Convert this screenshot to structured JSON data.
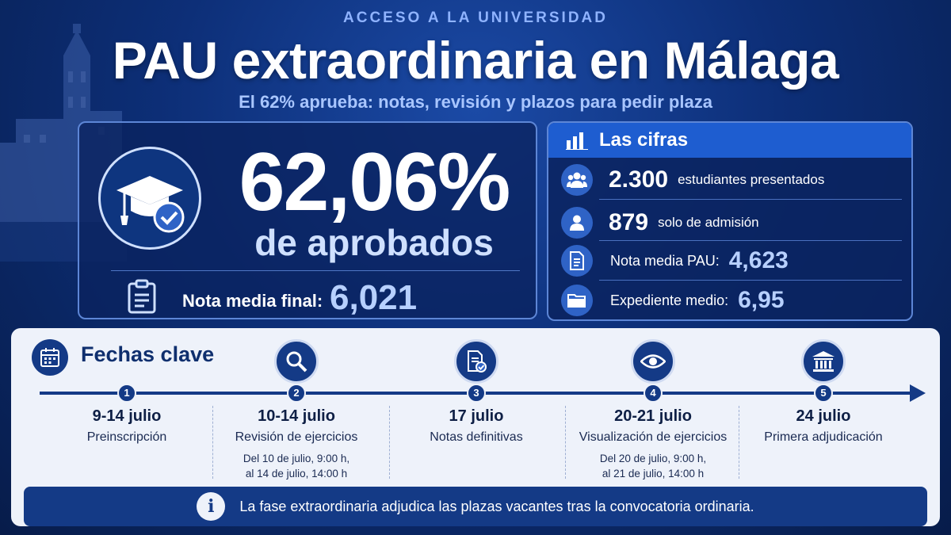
{
  "header": {
    "kicker": "ACCESO A LA UNIVERSIDAD",
    "title": "PAU extraordinaria en Málaga",
    "subtitle": "El 62% aprueba: notas, revisión y plazos para pedir plaza"
  },
  "main_stat": {
    "icon": "graduation-cap-check-icon",
    "percent": "62,06%",
    "percent_label": "de aprobados",
    "nota_label": "Nota media final:",
    "nota_value": "6,021",
    "nota_icon": "clipboard-icon"
  },
  "figures": {
    "title": "Las cifras",
    "title_icon": "bar-chart-icon",
    "rows": [
      {
        "icon": "group-icon",
        "number": "2.300",
        "text": "estudiantes presentados"
      },
      {
        "icon": "person-icon",
        "number": "879",
        "text": "solo de admisión"
      },
      {
        "icon": "document-icon",
        "label": "Nota media PAU:",
        "value": "4,623"
      },
      {
        "icon": "folder-icon",
        "label": "Expediente medio:",
        "value": "6,95"
      }
    ]
  },
  "timeline": {
    "title": "Fechas clave",
    "title_icon": "calendar-icon",
    "steps": [
      {
        "num": "1",
        "date": "9-14 julio",
        "label": "Preinscripción",
        "detail1": "",
        "detail2": ""
      },
      {
        "num": "2",
        "date": "10-14 julio",
        "label": "Revisión de ejercicios",
        "detail1": "Del 10 de julio, 9:00 h,",
        "detail2": "al 14 de julio, 14:00 h",
        "icon": "search-icon"
      },
      {
        "num": "3",
        "date": "17 julio",
        "label": "Notas definitivas",
        "detail1": "",
        "detail2": "",
        "icon": "document-check-icon"
      },
      {
        "num": "4",
        "date": "20-21 julio",
        "label": "Visualización de ejercicios",
        "detail1": "Del 20 de julio, 9:00 h,",
        "detail2": "al 21 de julio, 14:00 h",
        "icon": "eye-icon"
      },
      {
        "num": "5",
        "date": "24 julio",
        "label": "Primera adjudicación",
        "detail1": "",
        "detail2": "",
        "icon": "university-icon"
      }
    ]
  },
  "info": {
    "icon": "info-icon",
    "text": "La fase extraordinaria adjudica las plazas vacantes tras la convocatoria ordinaria."
  },
  "colors": {
    "navy": "#0b2a66",
    "accent": "#1e5dd0",
    "light_blue": "#b7d0ff",
    "card": "#eef2fa"
  }
}
